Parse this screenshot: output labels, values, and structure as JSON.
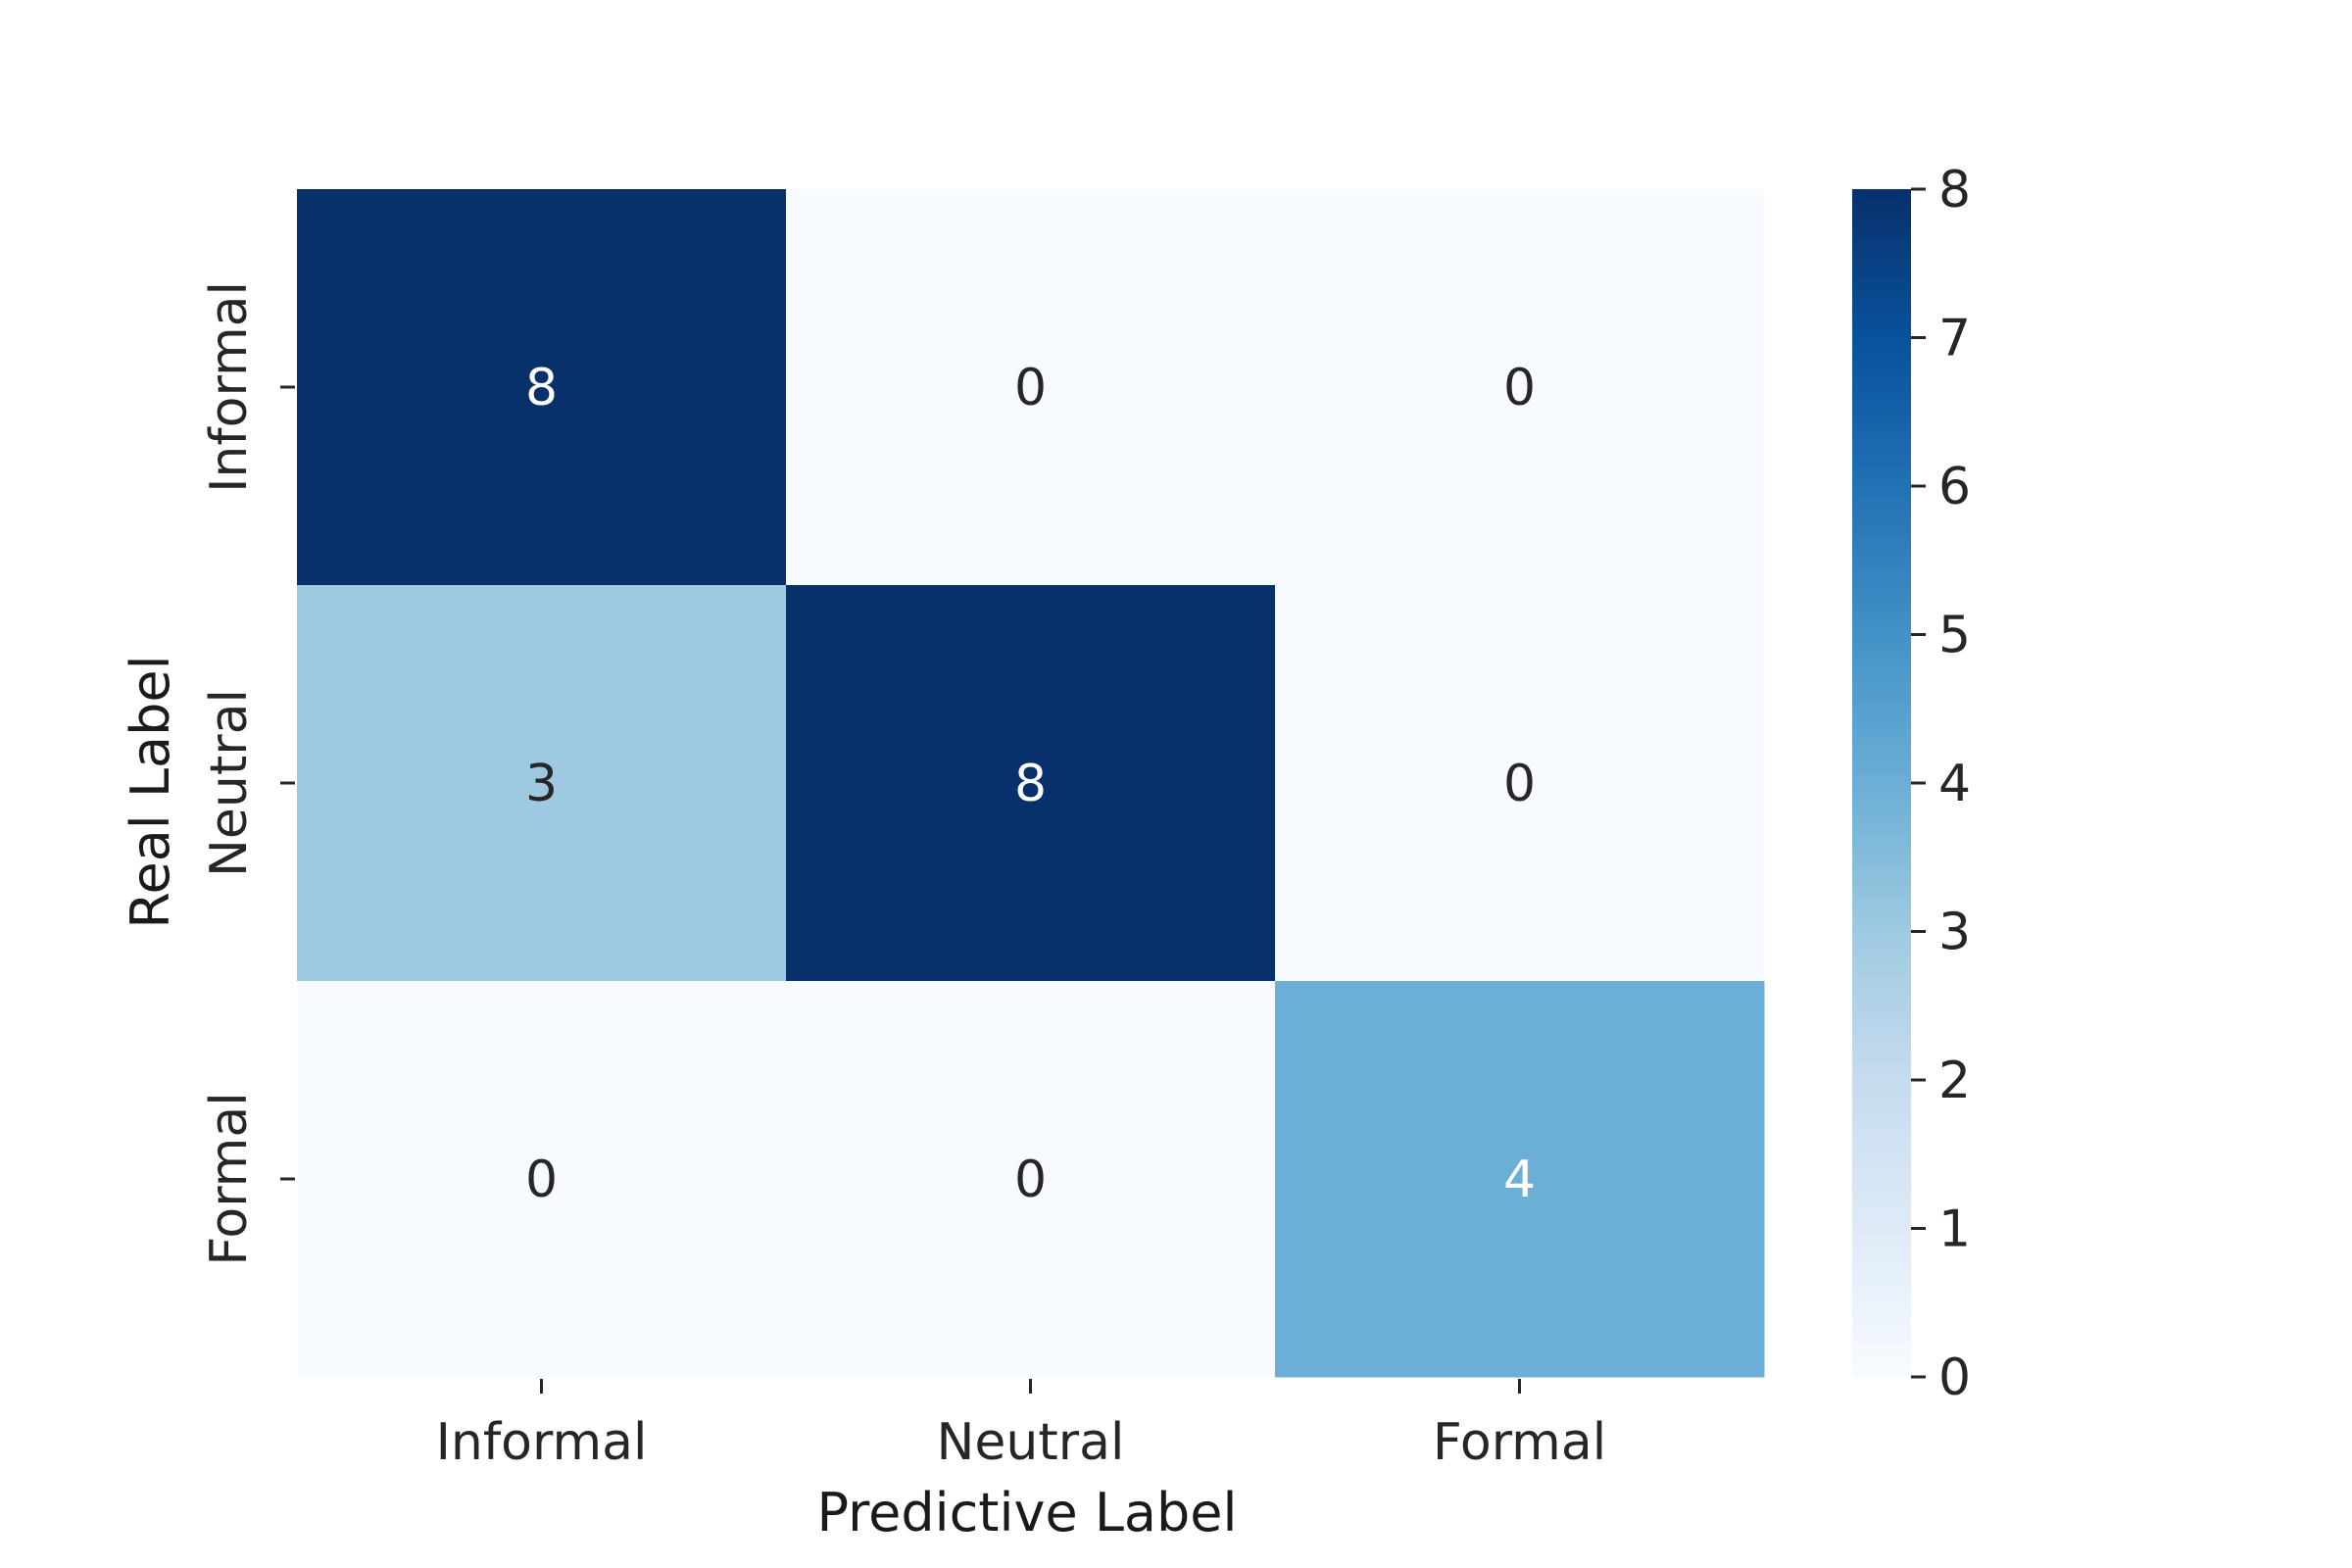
{
  "chart_data": {
    "type": "heatmap",
    "x_categories": [
      "Informal",
      "Neutral",
      "Formal"
    ],
    "y_categories": [
      "Informal",
      "Neutral",
      "Formal"
    ],
    "values": [
      [
        8,
        0,
        0
      ],
      [
        3,
        8,
        0
      ],
      [
        0,
        0,
        4
      ]
    ],
    "xlabel": "Predictive Label",
    "ylabel": "Real Label",
    "colorbar": {
      "min": 0,
      "max": 8,
      "ticks": [
        "0",
        "1",
        "2",
        "3",
        "4",
        "5",
        "6",
        "7",
        "8"
      ]
    },
    "colormap": "Blues",
    "colormap_stops": [
      "#f7fbff",
      "#deebf7",
      "#c6dbef",
      "#9ecae1",
      "#6baed6",
      "#4292c6",
      "#2171b5",
      "#08519c",
      "#08306b"
    ],
    "text_colors": {
      "light_bg": "#262626",
      "dark_bg": "#ffffff"
    }
  }
}
